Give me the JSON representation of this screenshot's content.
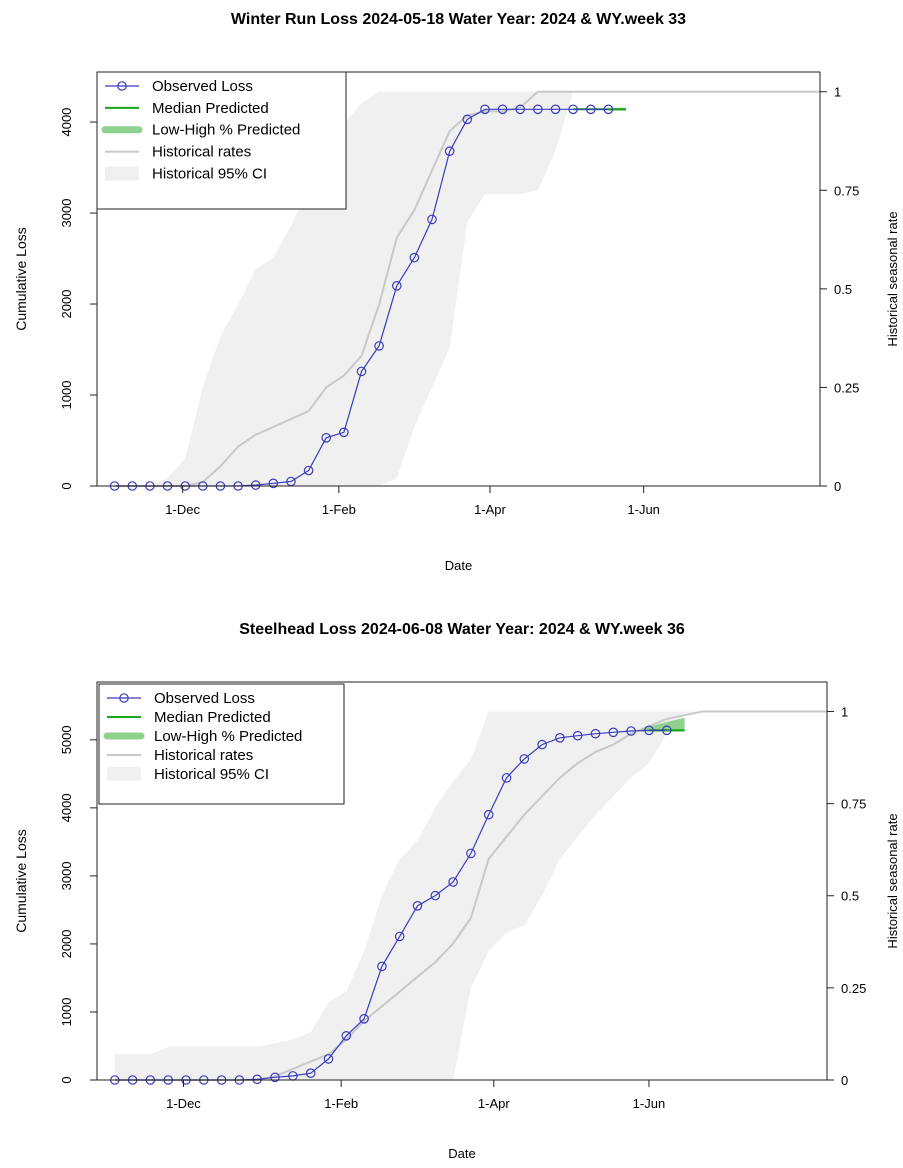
{
  "chart_data": [
    {
      "type": "line",
      "title": "Winter Run Loss 2024-05-18  Water Year: 2024 & WY.week 33",
      "xlabel": "Date",
      "ylabel": "Cumulative Loss",
      "ylabel_right": "Historical seasonal rate",
      "x_tick_labels": [
        "1-Dec",
        "1-Feb",
        "1-Apr",
        "1-Jun"
      ],
      "x_tick_dates": [
        "2023-12-01",
        "2024-02-01",
        "2024-04-01",
        "2024-06-01"
      ],
      "xlim": [
        "2023-10-28",
        "2024-08-10"
      ],
      "ylim": [
        0,
        4550
      ],
      "y_ticks": [
        0,
        1000,
        2000,
        3000,
        4000
      ],
      "y_tick_labels": [
        "0",
        "1000",
        "2000",
        "3000",
        "4000"
      ],
      "y2lim": [
        0,
        1.05
      ],
      "y2_ticks": [
        0,
        0.25,
        0.5,
        0.75,
        1
      ],
      "y2_tick_labels": [
        "0",
        "0.25",
        "0.5",
        "0.75",
        "1"
      ],
      "legend": {
        "position": "top-left",
        "entries": [
          "Observed Loss",
          "Median Predicted",
          "Low-High % Predicted",
          "Historical rates",
          "Historical 95% CI"
        ]
      },
      "series": [
        {
          "name": "Observed Loss",
          "axis": "left",
          "x": [
            "2023-11-04",
            "2023-11-11",
            "2023-11-18",
            "2023-11-25",
            "2023-12-02",
            "2023-12-09",
            "2023-12-16",
            "2023-12-23",
            "2023-12-30",
            "2024-01-06",
            "2024-01-13",
            "2024-01-20",
            "2024-01-27",
            "2024-02-03",
            "2024-02-10",
            "2024-02-17",
            "2024-02-24",
            "2024-03-02",
            "2024-03-09",
            "2024-03-16",
            "2024-03-23",
            "2024-03-30",
            "2024-04-06",
            "2024-04-13",
            "2024-04-20",
            "2024-04-27",
            "2024-05-04",
            "2024-05-11",
            "2024-05-18"
          ],
          "values": [
            0,
            0,
            0,
            0,
            0,
            0,
            0,
            0,
            10,
            30,
            50,
            170,
            530,
            590,
            1260,
            1540,
            2200,
            2510,
            2930,
            3680,
            4030,
            4140,
            4140,
            4140,
            4140,
            4140,
            4140,
            4140,
            4140
          ]
        },
        {
          "name": "Median Predicted",
          "axis": "left",
          "x": [
            "2024-05-04",
            "2024-05-25"
          ],
          "values": [
            4140,
            4140
          ]
        },
        {
          "name": "Low-High % Predicted",
          "axis": "left",
          "x": [
            "2024-05-18",
            "2024-05-25"
          ],
          "low": [
            4140,
            4140
          ],
          "high": [
            4140,
            4140
          ]
        },
        {
          "name": "Historical rates",
          "axis": "right",
          "x": [
            "2023-11-04",
            "2023-11-18",
            "2023-11-25",
            "2023-12-02",
            "2023-12-09",
            "2023-12-16",
            "2023-12-23",
            "2023-12-30",
            "2024-01-06",
            "2024-01-13",
            "2024-01-20",
            "2024-01-27",
            "2024-02-03",
            "2024-02-10",
            "2024-02-17",
            "2024-02-24",
            "2024-03-02",
            "2024-03-09",
            "2024-03-16",
            "2024-03-23",
            "2024-03-30",
            "2024-04-06",
            "2024-04-13",
            "2024-04-20",
            "2024-04-27",
            "2024-05-04",
            "2024-05-18",
            "2024-06-01",
            "2024-06-15",
            "2024-07-01",
            "2024-07-15",
            "2024-08-10"
          ],
          "values": [
            0,
            0,
            0,
            0,
            0.01,
            0.05,
            0.1,
            0.13,
            0.15,
            0.17,
            0.19,
            0.25,
            0.28,
            0.33,
            0.46,
            0.63,
            0.7,
            0.8,
            0.9,
            0.94,
            0.95,
            0.95,
            0.96,
            1,
            1,
            1,
            1,
            1,
            1,
            1,
            1,
            1
          ]
        },
        {
          "name": "Historical 95% CI",
          "axis": "right",
          "x": [
            "2023-11-04",
            "2023-11-18",
            "2023-11-25",
            "2023-12-02",
            "2023-12-09",
            "2023-12-16",
            "2023-12-23",
            "2023-12-30",
            "2024-01-06",
            "2024-01-13",
            "2024-01-20",
            "2024-01-27",
            "2024-02-03",
            "2024-02-10",
            "2024-02-17",
            "2024-02-24",
            "2024-03-02",
            "2024-03-09",
            "2024-03-16",
            "2024-03-23",
            "2024-03-30",
            "2024-04-06",
            "2024-04-13",
            "2024-04-20",
            "2024-04-27",
            "2024-05-04",
            "2024-05-18",
            "2024-06-01",
            "2024-06-15",
            "2024-07-01",
            "2024-07-15",
            "2024-08-10"
          ],
          "low": [
            0,
            0,
            0,
            0,
            0,
            0,
            0,
            0,
            0,
            0,
            0,
            0,
            0,
            0,
            0,
            0.02,
            0.15,
            0.25,
            0.35,
            0.67,
            0.74,
            0.74,
            0.74,
            0.75,
            0.85,
            1,
            1,
            1,
            1,
            1,
            1,
            1
          ],
          "high": [
            0,
            0,
            0.02,
            0.07,
            0.25,
            0.38,
            0.46,
            0.55,
            0.58,
            0.66,
            0.75,
            0.86,
            0.92,
            0.97,
            1,
            1,
            1,
            1,
            1,
            1,
            1,
            1,
            1,
            1,
            1,
            1,
            1,
            1,
            1,
            1,
            1,
            1
          ]
        }
      ]
    },
    {
      "type": "line",
      "title": "Steelhead Loss 2024-06-08  Water Year: 2024 & WY.week 36",
      "xlabel": "Date",
      "ylabel": "Cumulative Loss",
      "ylabel_right": "Historical seasonal rate",
      "x_tick_labels": [
        "1-Dec",
        "1-Feb",
        "1-Apr",
        "1-Jun"
      ],
      "x_tick_dates": [
        "2023-12-01",
        "2024-02-01",
        "2024-04-01",
        "2024-06-01"
      ],
      "xlim": [
        "2023-10-28",
        "2024-08-10"
      ],
      "ylim": [
        0,
        5850
      ],
      "y_ticks": [
        0,
        1000,
        2000,
        3000,
        4000,
        5000
      ],
      "y_tick_labels": [
        "0",
        "1000",
        "2000",
        "3000",
        "4000",
        "5000"
      ],
      "y2lim": [
        0,
        1.08
      ],
      "y2_ticks": [
        0,
        0.25,
        0.5,
        0.75,
        1
      ],
      "y2_tick_labels": [
        "0",
        "0.25",
        "0.5",
        "0.75",
        "1"
      ],
      "legend": {
        "position": "top-left",
        "entries": [
          "Observed Loss",
          "Median Predicted",
          "Low-High % Predicted",
          "Historical rates",
          "Historical 95% CI"
        ]
      },
      "series": [
        {
          "name": "Observed Loss",
          "axis": "left",
          "x": [
            "2023-11-04",
            "2023-11-11",
            "2023-11-18",
            "2023-11-25",
            "2023-12-02",
            "2023-12-09",
            "2023-12-16",
            "2023-12-23",
            "2023-12-30",
            "2024-01-06",
            "2024-01-13",
            "2024-01-20",
            "2024-01-27",
            "2024-02-03",
            "2024-02-10",
            "2024-02-17",
            "2024-02-24",
            "2024-03-02",
            "2024-03-09",
            "2024-03-16",
            "2024-03-23",
            "2024-03-30",
            "2024-04-06",
            "2024-04-13",
            "2024-04-20",
            "2024-04-27",
            "2024-05-04",
            "2024-05-11",
            "2024-05-18",
            "2024-05-25",
            "2024-06-01",
            "2024-06-08"
          ],
          "values": [
            0,
            0,
            0,
            0,
            0,
            0,
            0,
            0,
            10,
            40,
            60,
            100,
            310,
            650,
            900,
            1670,
            2110,
            2560,
            2710,
            2910,
            3330,
            3900,
            4440,
            4720,
            4930,
            5030,
            5060,
            5090,
            5110,
            5130,
            5140,
            5140
          ]
        },
        {
          "name": "Median Predicted",
          "axis": "left",
          "x": [
            "2024-06-01",
            "2024-06-15"
          ],
          "values": [
            5140,
            5140
          ]
        },
        {
          "name": "Low-High % Predicted",
          "axis": "left",
          "x": [
            "2024-05-29",
            "2024-06-08",
            "2024-06-15"
          ],
          "low": [
            5140,
            5140,
            5140
          ],
          "high": [
            5140,
            5240,
            5300
          ]
        },
        {
          "name": "Historical rates",
          "axis": "right",
          "x": [
            "2023-11-04",
            "2023-11-18",
            "2023-12-02",
            "2023-12-16",
            "2023-12-30",
            "2024-01-06",
            "2024-01-13",
            "2024-01-20",
            "2024-01-27",
            "2024-02-03",
            "2024-02-10",
            "2024-02-17",
            "2024-02-24",
            "2024-03-02",
            "2024-03-09",
            "2024-03-16",
            "2024-03-23",
            "2024-03-30",
            "2024-04-06",
            "2024-04-13",
            "2024-04-20",
            "2024-04-27",
            "2024-05-04",
            "2024-05-11",
            "2024-05-18",
            "2024-05-25",
            "2024-06-01",
            "2024-06-08",
            "2024-06-15",
            "2024-06-22",
            "2024-07-01",
            "2024-08-10"
          ],
          "values": [
            0,
            0,
            0,
            0,
            0,
            0.01,
            0.03,
            0.05,
            0.07,
            0.11,
            0.16,
            0.2,
            0.24,
            0.28,
            0.32,
            0.37,
            0.44,
            0.6,
            0.66,
            0.72,
            0.77,
            0.82,
            0.86,
            0.89,
            0.91,
            0.94,
            0.96,
            0.98,
            0.99,
            1,
            1,
            1
          ]
        },
        {
          "name": "Historical 95% CI",
          "axis": "right",
          "x": [
            "2023-11-04",
            "2023-11-18",
            "2023-11-25",
            "2023-12-02",
            "2023-12-16",
            "2023-12-30",
            "2024-01-06",
            "2024-01-13",
            "2024-01-20",
            "2024-01-27",
            "2024-02-03",
            "2024-02-10",
            "2024-02-17",
            "2024-02-24",
            "2024-03-02",
            "2024-03-09",
            "2024-03-16",
            "2024-03-23",
            "2024-03-30",
            "2024-04-06",
            "2024-04-13",
            "2024-04-20",
            "2024-04-27",
            "2024-05-04",
            "2024-05-11",
            "2024-05-18",
            "2024-05-25",
            "2024-06-01",
            "2024-06-08",
            "2024-06-15",
            "2024-06-22",
            "2024-07-01",
            "2024-08-10"
          ],
          "low": [
            0,
            0,
            0,
            0,
            0,
            0,
            0,
            0,
            0,
            0,
            0,
            0,
            0,
            0,
            0,
            0,
            0,
            0.25,
            0.35,
            0.4,
            0.42,
            0.5,
            0.6,
            0.66,
            0.72,
            0.77,
            0.82,
            0.86,
            0.94,
            0.99,
            1,
            1,
            1
          ],
          "high": [
            0.07,
            0.07,
            0.09,
            0.09,
            0.09,
            0.09,
            0.1,
            0.11,
            0.13,
            0.21,
            0.24,
            0.35,
            0.5,
            0.6,
            0.65,
            0.74,
            0.81,
            0.87,
            1,
            1,
            1,
            1,
            1,
            1,
            1,
            1,
            1,
            1,
            1,
            1,
            1,
            1,
            1
          ]
        }
      ]
    }
  ]
}
